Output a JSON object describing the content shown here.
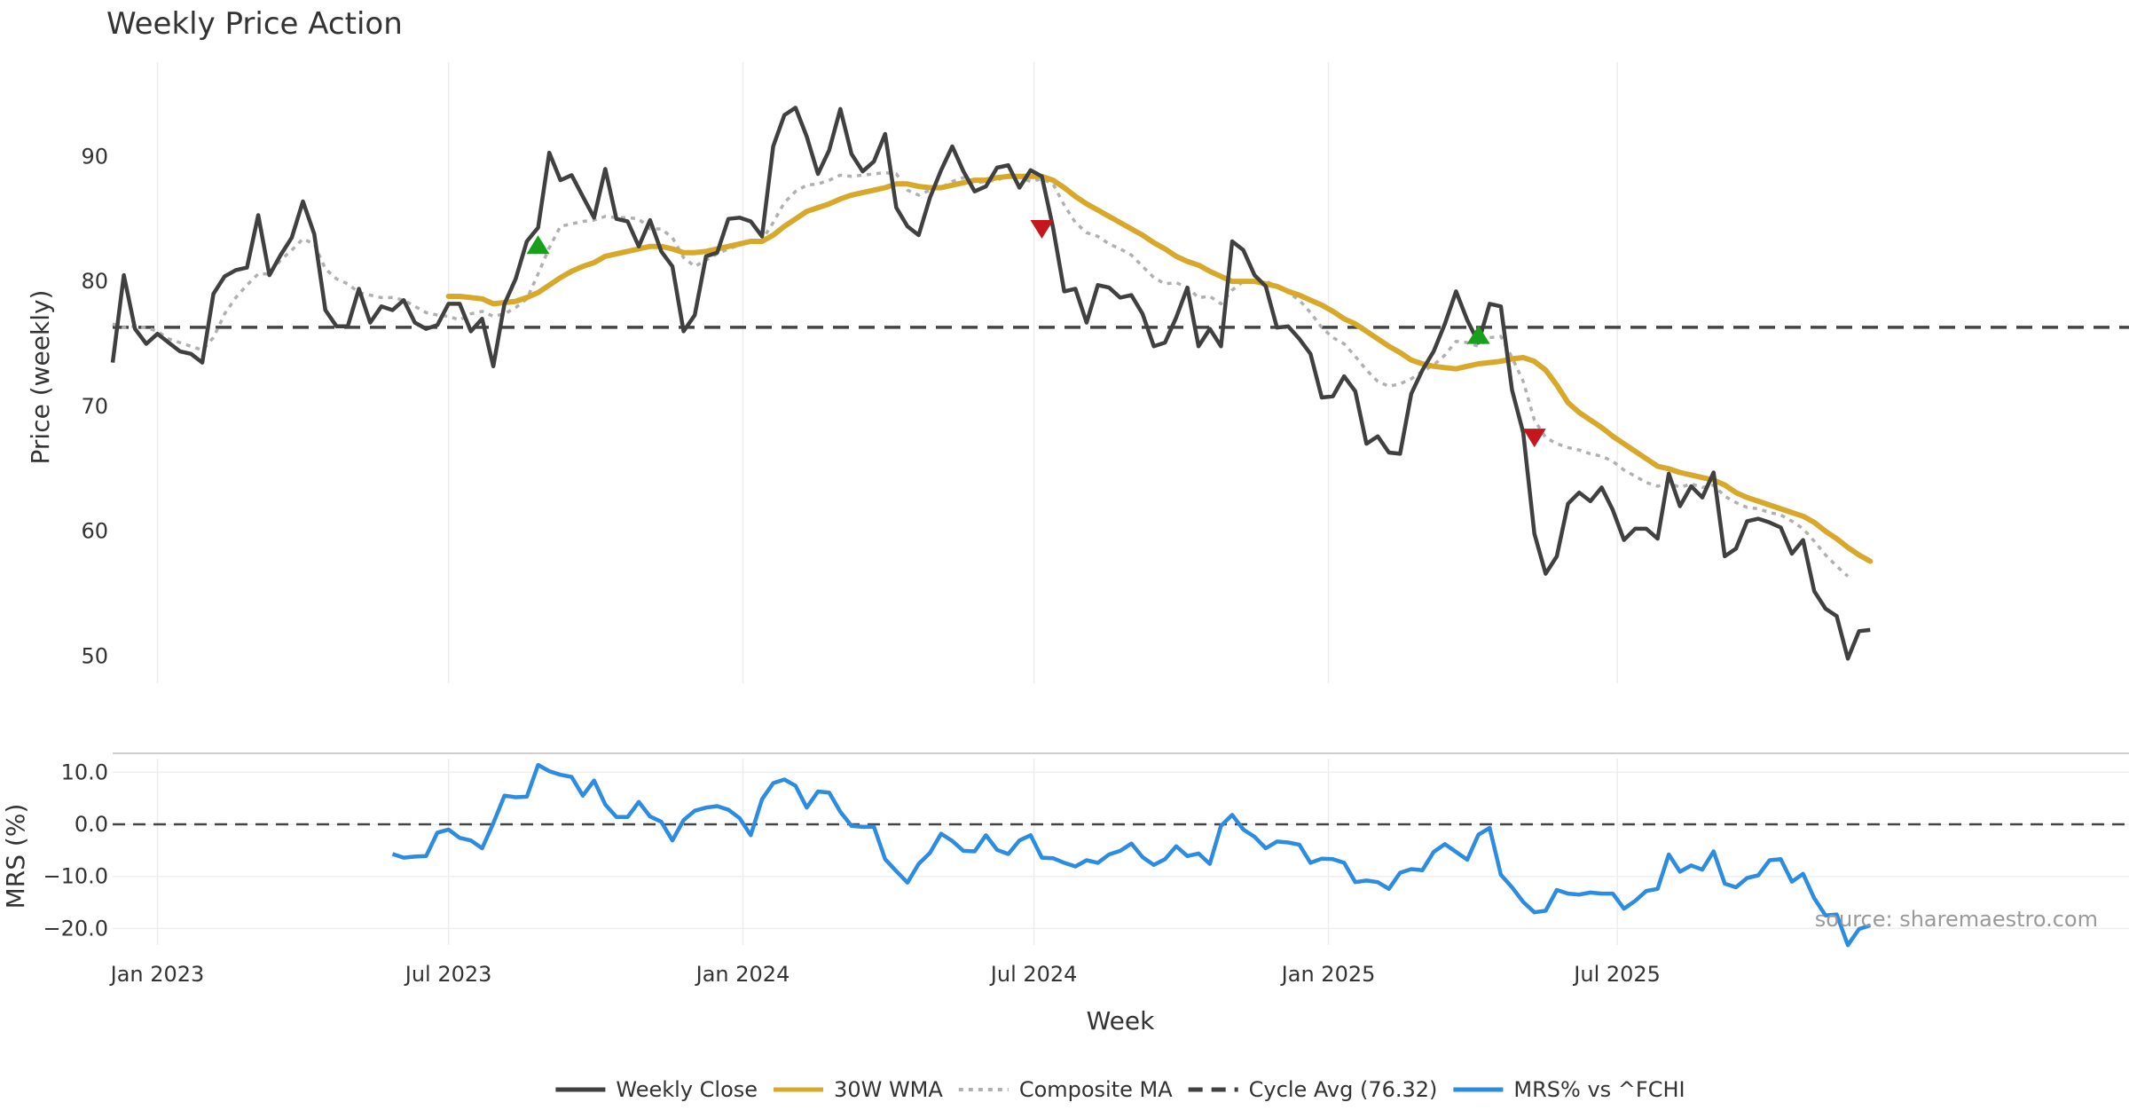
{
  "chart_data": [
    {
      "type": "line",
      "title": "Weekly Price Action",
      "ylabel": "Price (weekly)",
      "ylim": [
        46.5,
        96
      ],
      "yticks": [
        50,
        60,
        70,
        80,
        90
      ],
      "x_start": "2022-12-05",
      "grid": true,
      "cycle_avg": 76.32,
      "series": [
        {
          "name": "Weekly Close",
          "color": "#404040",
          "start_index": 0,
          "values": [
            73.5,
            80.5,
            76.2,
            75.0,
            75.8,
            75.1,
            74.4,
            74.2,
            73.5,
            79.0,
            80.4,
            80.9,
            81.1,
            85.3,
            80.5,
            82.1,
            83.5,
            86.4,
            83.8,
            77.7,
            76.4,
            76.4,
            79.4,
            76.7,
            78.0,
            77.7,
            78.5,
            76.7,
            76.2,
            76.5,
            78.2,
            78.2,
            76.0,
            77.0,
            73.2,
            78.2,
            80.2,
            83.2,
            84.3,
            90.3,
            88.1,
            88.5,
            86.8,
            85.1,
            89.0,
            85.0,
            84.8,
            82.8,
            84.9,
            82.4,
            81.2,
            76.0,
            77.3,
            82.0,
            82.3,
            85.0,
            85.1,
            84.8,
            83.6,
            90.8,
            93.3,
            93.9,
            91.6,
            88.6,
            90.5,
            93.8,
            90.2,
            88.8,
            89.6,
            91.8,
            85.9,
            84.4,
            83.7,
            86.7,
            88.9,
            90.8,
            88.8,
            87.2,
            87.6,
            89.1,
            89.3,
            87.5,
            88.9,
            88.4,
            84.3,
            79.2,
            79.4,
            76.7,
            79.7,
            79.5,
            78.7,
            78.9,
            77.4,
            74.8,
            75.1,
            77.1,
            79.5,
            74.8,
            76.2,
            74.8,
            83.2,
            82.5,
            80.5,
            79.6,
            76.3,
            76.4,
            75.4,
            74.2,
            70.7,
            70.8,
            72.4,
            71.2,
            67.0,
            67.6,
            66.3,
            66.2,
            71.0,
            72.9,
            74.4,
            76.6,
            79.2,
            76.9,
            75.1,
            78.2,
            78.0,
            71.3,
            67.9,
            59.8,
            56.6,
            58.0,
            62.2,
            63.1,
            62.4,
            63.5,
            61.7,
            59.3,
            60.2,
            60.2,
            59.4,
            64.6,
            62.0,
            63.6,
            62.7,
            64.7,
            58.0,
            58.6,
            60.8,
            61.0,
            60.7,
            60.3,
            58.2,
            59.3,
            55.2,
            53.8,
            53.2,
            49.8,
            52.0,
            52.1
          ]
        },
        {
          "name": "30W WMA",
          "color": "#d8a82a",
          "start_index": 30,
          "values": [
            78.8,
            78.8,
            78.7,
            78.6,
            78.2,
            78.3,
            78.4,
            78.7,
            79.1,
            79.7,
            80.3,
            80.8,
            81.2,
            81.5,
            82.0,
            82.2,
            82.4,
            82.6,
            82.8,
            82.8,
            82.6,
            82.3,
            82.3,
            82.4,
            82.6,
            82.8,
            83.0,
            83.2,
            83.2,
            83.7,
            84.4,
            85.0,
            85.6,
            85.9,
            86.2,
            86.6,
            86.9,
            87.1,
            87.3,
            87.5,
            87.8,
            87.8,
            87.6,
            87.5,
            87.5,
            87.7,
            87.9,
            88.1,
            88.1,
            88.3,
            88.4,
            88.4,
            88.4,
            88.4,
            88.1,
            87.5,
            86.8,
            86.2,
            85.7,
            85.2,
            84.7,
            84.2,
            83.7,
            83.1,
            82.6,
            82.0,
            81.6,
            81.3,
            80.8,
            80.4,
            80.0,
            80.0,
            80.0,
            79.8,
            79.6,
            79.2,
            78.9,
            78.5,
            78.1,
            77.6,
            77.0,
            76.6,
            76.0,
            75.4,
            74.8,
            74.3,
            73.7,
            73.4,
            73.2,
            73.1,
            73.0,
            73.2,
            73.4,
            73.5,
            73.6,
            73.8,
            73.9,
            73.6,
            72.9,
            71.7,
            70.3,
            69.5,
            68.9,
            68.3,
            67.6,
            67.0,
            66.4,
            65.8,
            65.2,
            65.0,
            64.7,
            64.5,
            64.3,
            64.1,
            63.7,
            63.1,
            62.7,
            62.4,
            62.1,
            61.8,
            61.5,
            61.2,
            60.7,
            60.0,
            59.4,
            58.7,
            58.1,
            57.6
          ]
        },
        {
          "name": "Composite MA",
          "color": "#b0b0b0",
          "dashed": true,
          "start_index": 0,
          "values": [
            76.6,
            76.3,
            76.4,
            76.3,
            76.0,
            75.4,
            75.1,
            74.8,
            74.5,
            75.5,
            77.4,
            78.7,
            79.7,
            80.6,
            80.6,
            81.7,
            82.5,
            83.4,
            83.0,
            81.0,
            80.2,
            79.8,
            79.1,
            78.9,
            78.7,
            78.7,
            78.5,
            78.0,
            77.5,
            77.3,
            77.2,
            76.9,
            77.4,
            77.6,
            77.2,
            77.4,
            77.9,
            78.6,
            80.6,
            82.7,
            84.4,
            84.6,
            84.8,
            84.9,
            85.2,
            85.1,
            85.1,
            85.0,
            84.2,
            84.2,
            83.5,
            81.9,
            81.2,
            81.7,
            82.2,
            82.6,
            82.9,
            83.2,
            83.3,
            84.7,
            86.3,
            87.2,
            87.7,
            87.8,
            88.1,
            88.5,
            88.4,
            88.5,
            88.6,
            88.7,
            88.6,
            87.3,
            86.9,
            87.3,
            87.5,
            88.0,
            88.3,
            87.9,
            88.0,
            88.1,
            88.5,
            88.3,
            88.0,
            88.2,
            87.8,
            86.1,
            84.7,
            83.9,
            83.6,
            83.0,
            82.6,
            82.1,
            81.2,
            80.3,
            79.8,
            79.9,
            79.5,
            78.7,
            78.8,
            78.2,
            79.3,
            80.0,
            80.0,
            80.0,
            79.6,
            79.1,
            78.5,
            77.5,
            76.3,
            75.5,
            75.0,
            74.0,
            72.9,
            72.0,
            71.6,
            71.8,
            72.2,
            72.8,
            73.3,
            74.1,
            75.2,
            75.1,
            74.8,
            75.5,
            75.6,
            73.9,
            72.0,
            68.9,
            67.5,
            67.0,
            66.7,
            66.5,
            66.2,
            66.0,
            65.6,
            64.9,
            64.4,
            63.9,
            63.6,
            63.9,
            63.5,
            63.8,
            63.5,
            63.7,
            62.8,
            62.3,
            61.9,
            61.8,
            61.5,
            61.3,
            60.8,
            60.2,
            59.2,
            58.1,
            57.2,
            56.4
          ]
        }
      ],
      "signals": [
        {
          "type": "buy",
          "index": 38,
          "value": 82.9,
          "color": "#17a11a"
        },
        {
          "type": "sell",
          "index": 83,
          "value": 84.2,
          "color": "#c4161c"
        },
        {
          "type": "buy",
          "index": 122,
          "value": 75.7,
          "color": "#17a11a"
        },
        {
          "type": "sell",
          "index": 127,
          "value": 67.5,
          "color": "#c4161c"
        }
      ]
    },
    {
      "type": "line",
      "ylabel": "MRS (%)",
      "xlabel": "Week",
      "ylim": [
        -26,
        13.5
      ],
      "yticks": [
        "10.0",
        "0.0",
        "−10.0",
        "−20.0"
      ],
      "zero_line": true,
      "xticks": [
        {
          "label": "Jan 2023",
          "index": 4
        },
        {
          "label": "Jul 2023",
          "index": 30
        },
        {
          "label": "Jan 2024",
          "index": 56.3
        },
        {
          "label": "Jul 2024",
          "index": 82.3
        },
        {
          "label": "Jan 2025",
          "index": 108.6
        },
        {
          "label": "Jul 2025",
          "index": 134.4
        }
      ],
      "series": [
        {
          "name": "MRS% vs ^FCHI",
          "color": "#2b8ce2",
          "start_index": 25,
          "values": [
            -5.7,
            -6.4,
            -6.2,
            -6.1,
            -1.6,
            -1.0,
            -2.6,
            -3.1,
            -4.6,
            0.2,
            5.5,
            5.2,
            5.3,
            11.4,
            10.2,
            9.5,
            9.1,
            5.5,
            8.4,
            3.8,
            1.4,
            1.4,
            4.3,
            1.5,
            0.5,
            -3.1,
            0.8,
            2.6,
            3.2,
            3.5,
            2.8,
            1.2,
            -2.1,
            4.8,
            7.9,
            8.6,
            7.4,
            3.2,
            6.3,
            6.1,
            2.4,
            -0.3,
            -0.5,
            -0.5,
            -6.7,
            -9.0,
            -11.2,
            -7.6,
            -5.5,
            -1.8,
            -3.2,
            -5.1,
            -5.2,
            -2.1,
            -4.9,
            -5.7,
            -3.1,
            -2.1,
            -6.4,
            -6.5,
            -7.4,
            -8.1,
            -6.9,
            -7.4,
            -5.8,
            -5.1,
            -3.7,
            -6.3,
            -7.8,
            -6.7,
            -4.2,
            -6.1,
            -5.6,
            -7.6,
            -0.3,
            1.8,
            -1.0,
            -2.4,
            -4.6,
            -3.3,
            -3.5,
            -3.9,
            -7.4,
            -6.6,
            -6.7,
            -7.4,
            -11.1,
            -10.8,
            -11.1,
            -12.4,
            -9.3,
            -8.6,
            -8.8,
            -5.3,
            -3.8,
            -5.3,
            -6.8,
            -2.0,
            -0.7,
            -9.7,
            -12.1,
            -14.9,
            -16.9,
            -16.6,
            -12.6,
            -13.3,
            -13.5,
            -13.1,
            -13.3,
            -13.3,
            -16.2,
            -14.7,
            -12.8,
            -12.4,
            -5.8,
            -9.1,
            -7.9,
            -8.7,
            -5.2,
            -11.4,
            -12.1,
            -10.3,
            -9.8,
            -6.9,
            -6.7,
            -11.0,
            -9.5,
            -14.2,
            -17.5,
            -17.3,
            -23.2,
            -20.1,
            -19.4
          ]
        }
      ],
      "source": "source: sharemaestro.com"
    }
  ],
  "legend": [
    {
      "label": "Weekly Close",
      "color": "#404040",
      "style": "solid"
    },
    {
      "label": "30W WMA",
      "color": "#d8a82a",
      "style": "solid"
    },
    {
      "label": "Composite MA",
      "color": "#b0b0b0",
      "style": "dotted"
    },
    {
      "label": "Cycle Avg (76.32)",
      "color": "#404040",
      "style": "dashed"
    },
    {
      "label": "MRS% vs ^FCHI",
      "color": "#2b8ce2",
      "style": "solid"
    }
  ]
}
